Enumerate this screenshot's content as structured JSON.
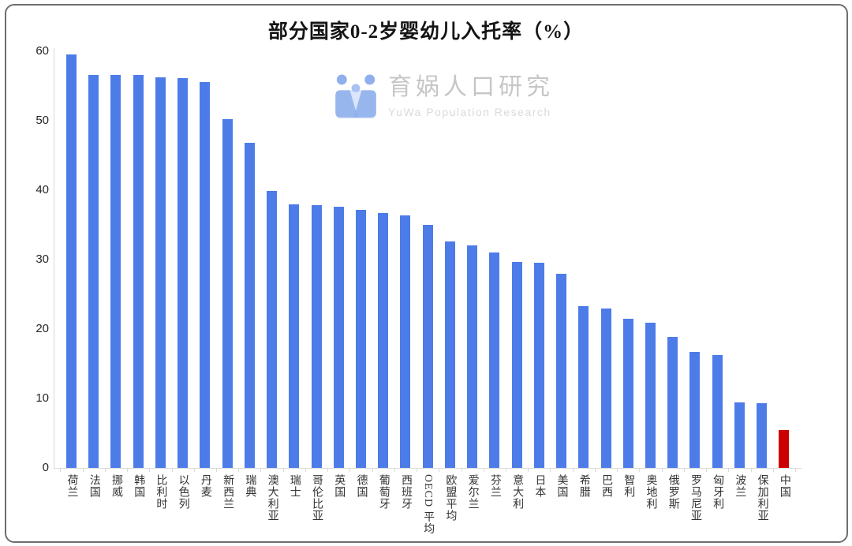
{
  "chart_data": {
    "type": "bar",
    "title": "部分国家0-2岁婴幼儿入托率（%）",
    "categories": [
      "荷兰",
      "法国",
      "挪威",
      "韩国",
      "比利时",
      "以色列",
      "丹麦",
      "新西兰",
      "瑞典",
      "澳大利亚",
      "瑞士",
      "哥伦比亚",
      "英国",
      "德国",
      "葡萄牙",
      "西班牙",
      "OECD 平均",
      "欧盟平均",
      "爱尔兰",
      "芬兰",
      "意大利",
      "日本",
      "美国",
      "希腊",
      "巴西",
      "智利",
      "奥地利",
      "俄罗斯",
      "罗马尼亚",
      "匈牙利",
      "波兰",
      "保加利亚",
      "中国"
    ],
    "values": [
      59.6,
      56.6,
      56.6,
      56.6,
      56.3,
      56.1,
      55.6,
      50.2,
      46.8,
      39.9,
      37.9,
      37.8,
      37.6,
      37.2,
      36.7,
      36.4,
      35.0,
      32.6,
      32.0,
      31.0,
      29.7,
      29.6,
      28.0,
      23.3,
      23.0,
      21.5,
      20.9,
      18.9,
      16.7,
      16.2,
      9.4,
      9.3,
      5.4
    ],
    "xlabel": "",
    "ylabel": "",
    "ylim": [
      0,
      60
    ],
    "yticks": [
      0,
      10,
      20,
      30,
      40,
      50,
      60
    ],
    "grid": false,
    "legend": false,
    "bar_color": "#4d7ce9",
    "highlight_category": "中国",
    "highlight_color": "#cc0000"
  },
  "watermark": {
    "cn": "育娲人口研究",
    "en": "YuWa Population Research",
    "logo_dark": "#8fb0ec",
    "logo_mid": "#aac2f2",
    "logo_light": "#c9d7f8"
  }
}
